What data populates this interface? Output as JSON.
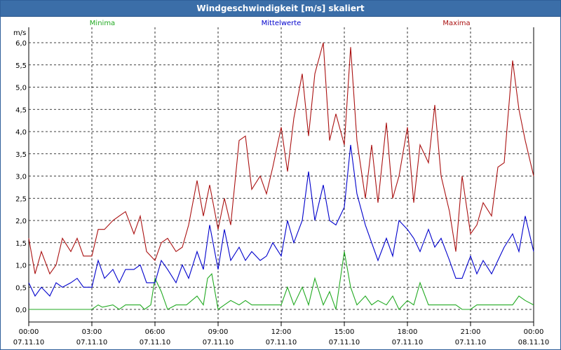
{
  "window": {
    "title": "Windgeschwindigkeit [m/s] skaliert"
  },
  "chart_data": {
    "type": "line",
    "title": "Windgeschwindigkeit [m/s] skaliert",
    "ylabel": "m/s",
    "xlabel": "",
    "ylim": [
      0,
      6
    ],
    "xlim_hours": [
      0,
      24
    ],
    "grid": true,
    "legend": "top",
    "y_ticks": [
      "0,0",
      "0,5",
      "1,0",
      "1,5",
      "2,0",
      "2,5",
      "3,0",
      "3,5",
      "4,0",
      "4,5",
      "5,0",
      "5,5",
      "6,0"
    ],
    "x_ticks": [
      {
        "time": "00:00",
        "date": "07.11.10"
      },
      {
        "time": "03:00",
        "date": "07.11.10"
      },
      {
        "time": "06:00",
        "date": "07.11.10"
      },
      {
        "time": "09:00",
        "date": "07.11.10"
      },
      {
        "time": "12:00",
        "date": "07.11.10"
      },
      {
        "time": "15:00",
        "date": "07.11.10"
      },
      {
        "time": "18:00",
        "date": "07.11.10"
      },
      {
        "time": "21:00",
        "date": "07.11.10"
      },
      {
        "time": "00:00",
        "date": "08.11.10"
      }
    ],
    "series": [
      {
        "name": "Minima",
        "color": "#22aa22",
        "x": [
          0,
          2,
          3,
          3.3,
          3.5,
          4,
          4.3,
          4.6,
          5,
          5.3,
          5.5,
          5.8,
          6,
          6.3,
          6.6,
          7,
          7.5,
          8,
          8.3,
          8.5,
          8.7,
          9,
          9.3,
          9.6,
          10,
          10.3,
          10.6,
          11,
          11.5,
          12,
          12.3,
          12.6,
          13,
          13.3,
          13.6,
          14,
          14.3,
          14.6,
          15,
          15.3,
          15.6,
          16,
          16.3,
          16.6,
          17,
          17.3,
          17.6,
          18,
          18.3,
          18.6,
          19,
          19.3,
          19.6,
          20,
          20.3,
          20.6,
          21,
          21.3,
          21.6,
          22,
          22.3,
          22.6,
          23,
          23.3,
          23.6,
          24
        ],
        "values": [
          0,
          0,
          0,
          0.1,
          0.05,
          0.1,
          0,
          0.1,
          0.1,
          0.1,
          0,
          0.1,
          0.7,
          0.4,
          0,
          0.1,
          0.1,
          0.3,
          0.1,
          0.7,
          0.8,
          0,
          0.1,
          0.2,
          0.1,
          0.2,
          0.1,
          0.1,
          0.1,
          0.1,
          0.5,
          0.1,
          0.5,
          0.1,
          0.7,
          0.1,
          0.4,
          0,
          1.3,
          0.5,
          0.1,
          0.3,
          0.1,
          0.2,
          0.1,
          0.3,
          0,
          0.2,
          0.1,
          0.6,
          0.1,
          0.1,
          0.1,
          0.1,
          0.1,
          0,
          0,
          0.1,
          0.1,
          0.1,
          0.1,
          0.1,
          0.1,
          0.3,
          0.2,
          0.1
        ]
      },
      {
        "name": "Mittelwerte",
        "color": "#0000cc",
        "x": [
          0,
          0.3,
          0.6,
          1,
          1.3,
          1.6,
          2,
          2.3,
          2.6,
          3,
          3.3,
          3.6,
          4,
          4.3,
          4.6,
          5,
          5.3,
          5.6,
          6,
          6.3,
          6.6,
          7,
          7.3,
          7.6,
          8,
          8.3,
          8.6,
          9,
          9.3,
          9.6,
          10,
          10.3,
          10.6,
          11,
          11.3,
          11.6,
          12,
          12.3,
          12.6,
          13,
          13.3,
          13.6,
          14,
          14.3,
          14.6,
          15,
          15.3,
          15.6,
          16,
          16.3,
          16.6,
          17,
          17.3,
          17.6,
          18,
          18.3,
          18.6,
          19,
          19.3,
          19.6,
          20,
          20.3,
          20.6,
          21,
          21.3,
          21.6,
          22,
          22.3,
          22.6,
          23,
          23.3,
          23.6,
          24
        ],
        "values": [
          0.6,
          0.3,
          0.5,
          0.3,
          0.6,
          0.5,
          0.6,
          0.7,
          0.5,
          0.5,
          1.1,
          0.7,
          0.9,
          0.6,
          0.9,
          0.9,
          1,
          0.6,
          0.6,
          1.1,
          0.9,
          0.6,
          1,
          0.7,
          1.3,
          0.9,
          1.9,
          0.9,
          1.8,
          1.1,
          1.4,
          1.1,
          1.3,
          1.1,
          1.2,
          1.5,
          1.2,
          2,
          1.5,
          2,
          3.1,
          2,
          2.8,
          2,
          1.9,
          2.3,
          3.7,
          2.6,
          1.9,
          1.5,
          1.1,
          1.6,
          1.2,
          2,
          1.8,
          1.6,
          1.3,
          1.8,
          1.4,
          1.6,
          1.1,
          0.7,
          0.7,
          1.2,
          0.8,
          1.1,
          0.8,
          1.1,
          1.4,
          1.7,
          1.3,
          2.1,
          1.3
        ],
        "annotation": null
      },
      {
        "name": "Maxima",
        "color": "#aa1111",
        "x": [
          0,
          0.3,
          0.6,
          1,
          1.3,
          1.6,
          2,
          2.3,
          2.6,
          3,
          3.3,
          3.6,
          4,
          4.3,
          4.6,
          5,
          5.3,
          5.6,
          6,
          6.3,
          6.6,
          7,
          7.3,
          7.6,
          8,
          8.3,
          8.6,
          9,
          9.3,
          9.6,
          10,
          10.3,
          10.6,
          11,
          11.3,
          11.6,
          12,
          12.3,
          12.6,
          13,
          13.3,
          13.6,
          14,
          14.3,
          14.6,
          15,
          15.3,
          15.6,
          16,
          16.3,
          16.6,
          17,
          17.3,
          17.6,
          18,
          18.3,
          18.6,
          19,
          19.3,
          19.6,
          20,
          20.3,
          20.6,
          21,
          21.3,
          21.6,
          22,
          22.3,
          22.6,
          23,
          23.3,
          23.6,
          24
        ],
        "values": [
          1.6,
          0.8,
          1.3,
          0.8,
          1,
          1.6,
          1.3,
          1.6,
          1.2,
          1.2,
          1.8,
          1.8,
          2,
          2.1,
          2.2,
          1.7,
          2.1,
          1.3,
          1.1,
          1.5,
          1.6,
          1.3,
          1.4,
          1.9,
          2.9,
          2.1,
          2.8,
          1.8,
          2.5,
          1.9,
          3.8,
          3.9,
          2.7,
          3,
          2.6,
          3.2,
          4.1,
          3.1,
          4.3,
          5.3,
          3.9,
          5.3,
          6,
          3.8,
          4.4,
          3.7,
          5.9,
          3.8,
          2.5,
          3.7,
          2.4,
          4.2,
          2.5,
          3,
          4.1,
          2.4,
          3.7,
          3.3,
          4.6,
          3,
          2.2,
          1.3,
          3,
          1.7,
          1.9,
          2.4,
          2.1,
          3.2,
          3.3,
          5.6,
          4.5,
          3.8,
          3
        ]
      }
    ]
  }
}
